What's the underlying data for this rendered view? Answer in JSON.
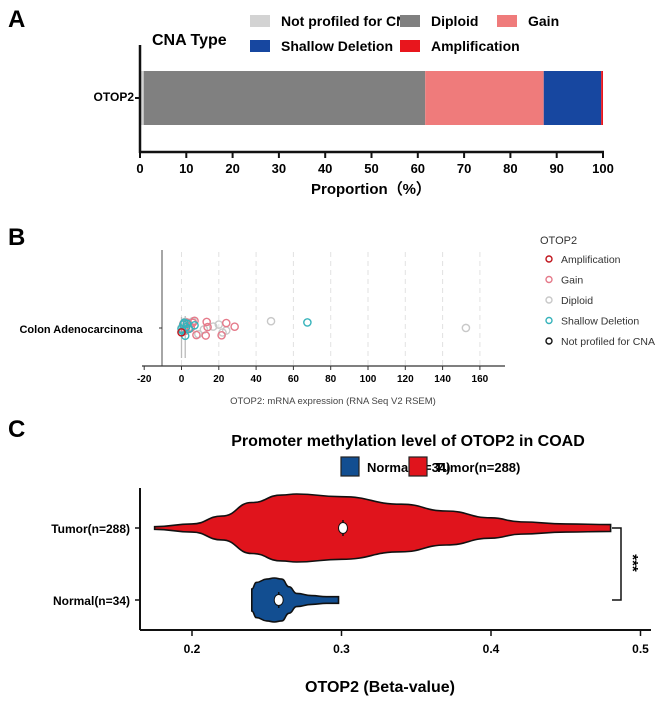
{
  "panel_labels": [
    "A",
    "B",
    "C"
  ],
  "chart_data": [
    {
      "type": "bar",
      "orientation": "horizontal-stacked",
      "legend_title": "CNA Type",
      "categories": [
        "OTOP2"
      ],
      "series": [
        {
          "name": "Not profiled for CNA",
          "values": [
            0.8
          ],
          "color": "#d3d3d3"
        },
        {
          "name": "Diploid",
          "values": [
            60.8
          ],
          "color": "#808080"
        },
        {
          "name": "Gain",
          "values": [
            25.6
          ],
          "color": "#ef7b7b"
        },
        {
          "name": "Shallow Deletion",
          "values": [
            12.4
          ],
          "color": "#1747a0"
        },
        {
          "name": "Amplification",
          "values": [
            0.4
          ],
          "color": "#e8161d"
        }
      ],
      "xlabel": "Proportion（%）",
      "xlim": [
        0,
        100
      ],
      "xticks": [
        "0",
        "10",
        "20",
        "30",
        "40",
        "50",
        "60",
        "70",
        "80",
        "90",
        "100"
      ],
      "legend": "top"
    },
    {
      "type": "scatter",
      "category": "Colon Adenocarcinoma",
      "legend_title": "OTOP2",
      "legend": "right",
      "xlabel": "OTOP2: mRNA expression (RNA Seq V2 RSEM)",
      "xlim": [
        -20,
        172
      ],
      "xticks": [
        "-20",
        "0",
        "20",
        "40",
        "60",
        "80",
        "100",
        "120",
        "140",
        "160"
      ],
      "grid": "vertical dashed",
      "series": [
        {
          "name": "Amplification",
          "color": "#c0141c",
          "x": [
            0
          ]
        },
        {
          "name": "Gain",
          "color": "#e57a8a",
          "x": [
            1,
            2,
            3,
            4,
            5,
            6,
            7,
            8,
            13,
            13.5,
            14,
            21.5,
            24,
            28.5
          ]
        },
        {
          "name": "Diploid",
          "color": "#c8c8c8",
          "x": [
            0,
            1,
            2,
            3,
            4,
            5,
            6,
            9,
            12,
            17,
            20,
            22,
            24,
            48,
            152.5
          ]
        },
        {
          "name": "Shallow Deletion",
          "color": "#37b3bb",
          "x": [
            0,
            0.5,
            1,
            1.5,
            2,
            2.5,
            3,
            4,
            7,
            67.5
          ]
        },
        {
          "name": "Not profiled for CNA",
          "color": "#111111",
          "x": []
        }
      ]
    },
    {
      "type": "violin",
      "title": "Promoter methylation level of OTOP2 in COAD",
      "xlabel": "OTOP2 (Beta-value)",
      "xlim": [
        0.165,
        0.505
      ],
      "xticks": [
        "0.2",
        "0.3",
        "0.4",
        "0.5"
      ],
      "legend": "top",
      "significance": "***",
      "series": [
        {
          "name": "Normal(n=34)",
          "color": "#124e91",
          "median": 0.258,
          "density": {
            "x": [
              0.24,
              0.243,
              0.25,
              0.255,
              0.26,
              0.265,
              0.27,
              0.28,
              0.29,
              0.298
            ],
            "width": [
              0.5,
              0.8,
              0.95,
              1.0,
              0.95,
              0.6,
              0.3,
              0.2,
              0.15,
              0.15
            ]
          }
        },
        {
          "name": "Tumor(n=288)",
          "color": "#e0141c",
          "median": 0.301,
          "density": {
            "x": [
              0.175,
              0.2,
              0.22,
              0.24,
              0.26,
              0.27,
              0.3,
              0.34,
              0.37,
              0.4,
              0.42,
              0.45,
              0.48
            ],
            "width": [
              0.04,
              0.12,
              0.35,
              0.75,
              0.97,
              1.0,
              0.92,
              0.7,
              0.5,
              0.3,
              0.18,
              0.12,
              0.1
            ]
          }
        }
      ]
    }
  ]
}
